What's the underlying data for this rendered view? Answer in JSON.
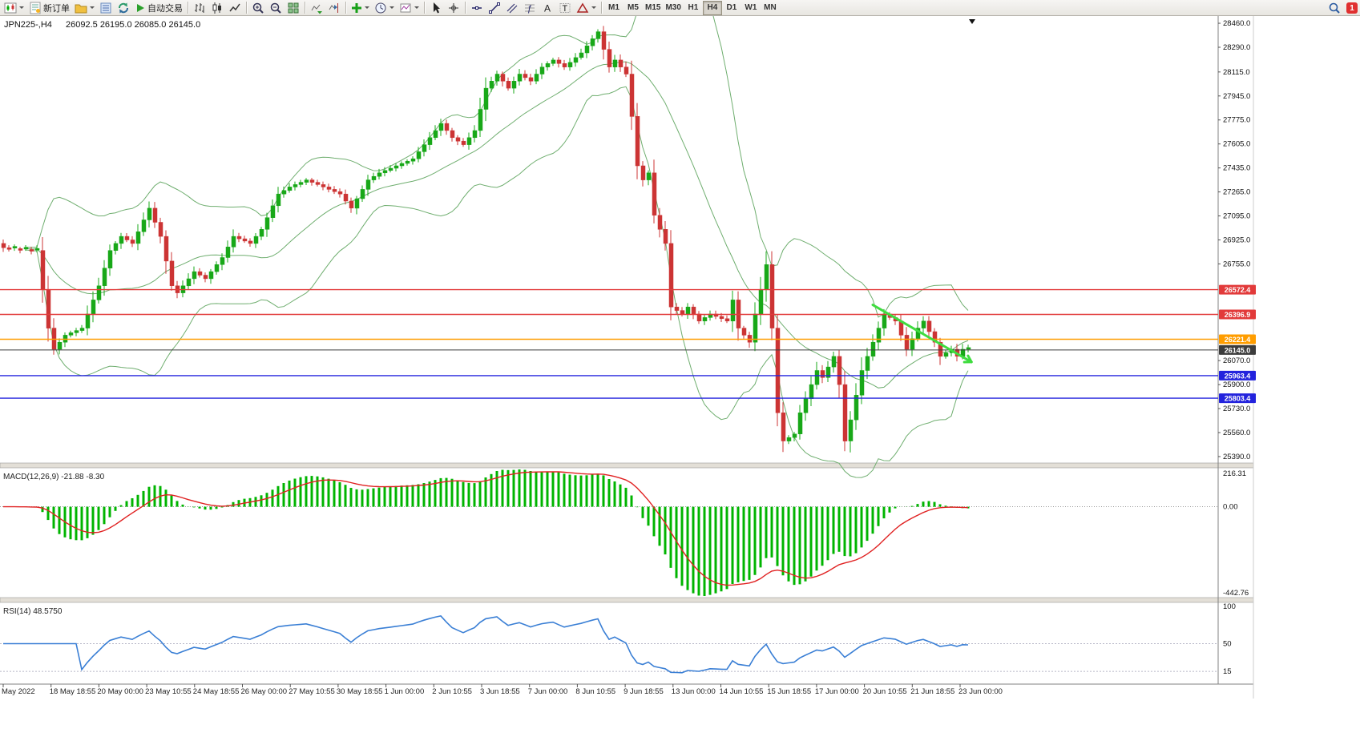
{
  "toolbar": {
    "new_order": "新订单",
    "autotrading": "自动交易",
    "timeframes": [
      "M1",
      "M5",
      "M15",
      "M30",
      "H1",
      "H4",
      "D1",
      "W1",
      "MN"
    ],
    "active_timeframe": "H4",
    "badge": "1",
    "icons": [
      "new-chart-icon",
      "order-form-icon",
      "profiles-icon",
      "market-watch-icon",
      "refresh-icon",
      "play-icon",
      "bars-icon",
      "candles-icon",
      "line-chart-icon",
      "zoom-in-icon",
      "zoom-out-icon",
      "tile-windows-icon",
      "auto-scroll-icon",
      "chart-shift-icon",
      "indicators-plus-icon",
      "periods-clock-icon",
      "template-icon",
      "cursor-icon",
      "crosshair-icon",
      "hline-icon",
      "trendline-icon",
      "channel-icon",
      "fibonacci-icon",
      "text-icon",
      "label-icon",
      "shapes-icon",
      "search-icon"
    ]
  },
  "chart": {
    "title": "JPN225-,H4",
    "ohlc": "26092.5 26195.0 26085.0 26145.0"
  },
  "indicators": {
    "macd_label": "MACD(12,26,9) -21.88 -8.30",
    "rsi_label": "RSI(14) 48.5750",
    "macd_scale": {
      "max": "216.31",
      "zero": "0.00",
      "min": "-442.76"
    },
    "rsi_scale": {
      "top": "100",
      "mid": "50",
      "low": "15"
    }
  },
  "price_scale": {
    "ticks": [
      "28460.0",
      "28290.0",
      "28115.0",
      "27945.0",
      "27775.0",
      "27605.0",
      "27435.0",
      "27265.0",
      "27095.0",
      "26925.0",
      "26755.0",
      "26070.0",
      "25900.0",
      "25730.0",
      "25560.0",
      "25390.0"
    ]
  },
  "price_lines": [
    {
      "price": 26572.4,
      "label": "26572.4",
      "color": "#e23a3a",
      "type": "resistance"
    },
    {
      "price": 26396.9,
      "label": "26396.9",
      "color": "#e23a3a",
      "type": "resistance"
    },
    {
      "price": 26221.4,
      "label": "26221.4",
      "color": "#ff9d00",
      "type": "pivot"
    },
    {
      "price": 26145.0,
      "label": "26145.0",
      "color": "#3c3c3c",
      "type": "current-price"
    },
    {
      "price": 25963.4,
      "label": "25963.4",
      "color": "#2323dd",
      "type": "support"
    },
    {
      "price": 25803.4,
      "label": "25803.4",
      "color": "#2323dd",
      "type": "support"
    }
  ],
  "trendline": {
    "from_index": 155,
    "from_price": 26465,
    "to_index": 172.6,
    "to_price": 26060,
    "color": "#3fdc3f",
    "width": 3
  },
  "time_axis": [
    "May 2022",
    "18 May 18:55",
    "20 May 00:00",
    "23 May 10:55",
    "24 May 18:55",
    "26 May 00:00",
    "27 May 10:55",
    "30 May 18:55",
    "1 Jun 00:00",
    "2 Jun 10:55",
    "3 Jun 18:55",
    "7 Jun 00:00",
    "8 Jun 10:55",
    "9 Jun 18:55",
    "13 Jun 00:00",
    "14 Jun 10:55",
    "15 Jun 18:55",
    "17 Jun 00:00",
    "20 Jun 10:55",
    "21 Jun 18:55",
    "23 Jun 00:00"
  ],
  "chart_data": {
    "type": "candlestick",
    "symbol": "JPN225-",
    "period": "H4",
    "ohlc_display": {
      "open": 26092.5,
      "high": 26195.0,
      "low": 26085.0,
      "close": 26145.0
    },
    "y_range": [
      25350,
      28500
    ],
    "closes": [
      26870,
      26867,
      26863,
      26860,
      26857,
      26853,
      26850,
      26575,
      26300,
      26150,
      26200,
      26250,
      26267,
      26283,
      26300,
      26400,
      26500,
      26600,
      26725,
      26850,
      26900,
      26950,
      26925,
      26900,
      26983,
      27067,
      27150,
      27050,
      26950,
      26775,
      26600,
      26550,
      26600,
      26650,
      26700,
      26675,
      26650,
      26700,
      26750,
      26800,
      26875,
      26950,
      26933,
      26917,
      26900,
      26950,
      27000,
      27083,
      27167,
      27250,
      27275,
      27300,
      27317,
      27333,
      27350,
      27333,
      27317,
      27300,
      27283,
      27267,
      27250,
      27200,
      27150,
      27217,
      27283,
      27350,
      27375,
      27400,
      27417,
      27433,
      27450,
      27467,
      27483,
      27500,
      27550,
      27600,
      27650,
      27700,
      27750,
      27700,
      27650,
      27625,
      27600,
      27650,
      27700,
      27850,
      28000,
      28050,
      28100,
      28050,
      28000,
      28050,
      28100,
      28075,
      28050,
      28100,
      28150,
      28175,
      28200,
      28175,
      28150,
      28183,
      28217,
      28250,
      28300,
      28350,
      28400,
      28275,
      28150,
      28200,
      28150,
      28100,
      27800,
      27450,
      27350,
      27400,
      27100,
      27000,
      26900,
      26450,
      26425,
      26400,
      26450,
      26400,
      26350,
      26375,
      26400,
      26383,
      26367,
      26350,
      26500,
      26300,
      26250,
      26200,
      26400,
      26575,
      26750,
      26300,
      25700,
      25500,
      25525,
      25550,
      25700,
      25800,
      25900,
      26000,
      25950,
      26025,
      26100,
      25900,
      25500,
      25650,
      25825,
      26000,
      26100,
      26200,
      26300,
      26400,
      26375,
      26350,
      26250,
      26150,
      26225,
      26300,
      26350,
      26275,
      26200,
      26100,
      26125,
      26150,
      26100,
      26150,
      26145
    ],
    "bollinger": {
      "period": 20,
      "deviation": 2
    },
    "macd": {
      "fast": 12,
      "slow": 26,
      "signal": 9,
      "value": -21.88,
      "signal_value": -8.3
    },
    "rsi": {
      "period": 14,
      "value": 48.575
    }
  },
  "colors": {
    "bull": "#18a818",
    "bear": "#cc3434",
    "bollinger": "#6fae6f",
    "macd_hist": "#00b400",
    "macd_signal": "#e02222",
    "rsi_line": "#3a7fd5",
    "trend": "#3fdc3f"
  }
}
